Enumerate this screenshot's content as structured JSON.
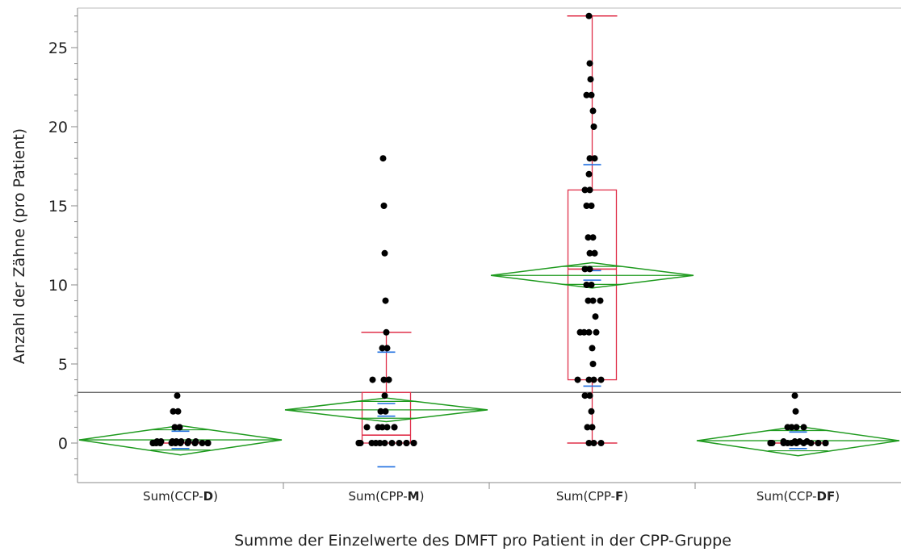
{
  "chart_data": {
    "type": "scatter",
    "title": "",
    "xlabel": "Summe der Einzelwerte des DMFT pro Patient in der CPP-Gruppe",
    "ylabel": "Anzahl der Zähne (pro Patient)",
    "ylim": [
      -2.5,
      27.5
    ],
    "yticks": [
      "0",
      "5",
      "10",
      "15",
      "20",
      "25"
    ],
    "grand_mean": 3.2,
    "groups": [
      {
        "label_prefix": "Sum(CCP-",
        "label_bold": "D",
        "label_suffix": ")",
        "mean": 0.2,
        "mean_ci": [
          -0.75,
          1.1
        ],
        "std_dev_bars": [
          -0.35,
          0.75
        ],
        "box": {
          "q1": 0,
          "median": 0,
          "q3": 0,
          "whisker_low": 0,
          "whisker_high": 0
        },
        "points": [
          3,
          2,
          2,
          1,
          1,
          0.1,
          0.1,
          0.1,
          0.1,
          0.1,
          0.1,
          0.1,
          0.1,
          0,
          0,
          0,
          0,
          0,
          0,
          0,
          0,
          0,
          0,
          0,
          0,
          0,
          0,
          0,
          0,
          0
        ]
      },
      {
        "label_prefix": "Sum(CPP-",
        "label_bold": "M",
        "label_suffix": ")",
        "mean": 2.1,
        "mean_ci": [
          1.35,
          2.85
        ],
        "std_dev_bars": [
          -1.5,
          5.75
        ],
        "mean_error_bars": [
          1.7,
          2.5
        ],
        "box": {
          "q1": 0,
          "median": 0.5,
          "q3": 3.2,
          "whisker_low": 0,
          "whisker_high": 7
        },
        "points": [
          18,
          15,
          12,
          9,
          7,
          6,
          6,
          4,
          4,
          4,
          4,
          3,
          2,
          2,
          1,
          1,
          1,
          1,
          1,
          1,
          0,
          0,
          0,
          0,
          0,
          0,
          0,
          0,
          0,
          0,
          0,
          0,
          0,
          0
        ]
      },
      {
        "label_prefix": "Sum(CPP-",
        "label_bold": "F",
        "label_suffix": ")",
        "mean": 10.6,
        "mean_ci": [
          9.8,
          11.4
        ],
        "std_dev_bars": [
          3.6,
          17.6
        ],
        "mean_error_bars": [
          10.3,
          10.9
        ],
        "box": {
          "q1": 4,
          "median": 11,
          "q3": 16,
          "whisker_low": 0,
          "whisker_high": 27
        },
        "points": [
          27,
          24,
          23,
          22,
          22,
          21,
          20,
          18,
          18,
          17,
          16,
          16,
          15,
          15,
          13,
          13,
          12,
          12,
          12,
          11,
          11,
          10,
          10,
          9,
          9,
          9,
          8,
          7,
          7,
          7,
          7,
          6,
          5,
          4,
          4,
          4,
          4,
          3,
          3,
          2,
          1,
          1,
          0,
          0,
          0
        ]
      },
      {
        "label_prefix": "Sum(CCP-",
        "label_bold": "DF",
        "label_suffix": ")",
        "mean": 0.15,
        "mean_ci": [
          -0.8,
          1.05
        ],
        "std_dev_bars": [
          -0.35,
          0.7
        ],
        "box": {
          "q1": 0,
          "median": 0,
          "q3": 0,
          "whisker_low": 0,
          "whisker_high": 0
        },
        "points": [
          3,
          2,
          1,
          1,
          1,
          1,
          0.1,
          0.1,
          0.1,
          0.1,
          0.1,
          0,
          0,
          0,
          0,
          0,
          0,
          0,
          0,
          0,
          0,
          0,
          0,
          0,
          0,
          0,
          0,
          0
        ]
      }
    ],
    "colors": {
      "points": "#000000",
      "box": "#e0304a",
      "diamond": "#1e9a1e",
      "error_bars": "#1f6fe0",
      "grand_mean_line": "#555555",
      "axis": "#888888"
    },
    "grid": false,
    "legend": "none"
  }
}
